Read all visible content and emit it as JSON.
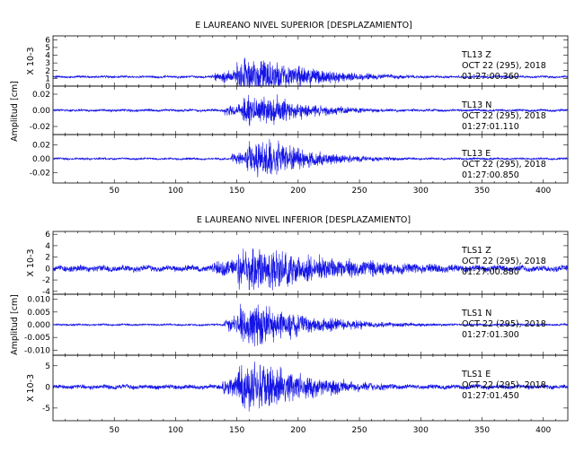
{
  "chart_data": [
    {
      "type": "line",
      "title": "E LAUREANO NIVEL SUPERIOR [DESPLAZAMIENTO]",
      "ylabel": "Amplitud [cm]",
      "xlim": [
        0,
        420
      ],
      "xticks": [
        50,
        100,
        150,
        200,
        250,
        300,
        350,
        400
      ],
      "show_xtick_labels": true,
      "panels": [
        {
          "station": "TL13   Z",
          "date": "OCT 22 (295), 2018",
          "time": "01:27:00.360",
          "scale_label": "X 10-3",
          "ylim": [
            0,
            6.5
          ],
          "yticks": [
            0,
            1,
            2,
            3,
            4,
            5,
            6
          ],
          "ytick_labels": [
            "0",
            "1",
            "2",
            "3",
            "4",
            "5",
            "6"
          ],
          "signal": {
            "baseline": 1.2,
            "noise": 0.12,
            "onset": 132,
            "peak_start": 150,
            "peak_end": 175,
            "peak_amp": 2.6,
            "decay": 0.02,
            "seed": 11
          }
        },
        {
          "station": "TL13   N",
          "date": "OCT 22 (295), 2018",
          "time": "01:27:01.110",
          "scale_label": "",
          "ylim": [
            -0.03,
            0.03
          ],
          "yticks": [
            -0.02,
            0.0,
            0.02
          ],
          "ytick_labels": [
            "-0.02",
            "0.00",
            "0.02"
          ],
          "signal": {
            "baseline": 0.0,
            "noise": 0.0012,
            "onset": 140,
            "peak_start": 155,
            "peak_end": 180,
            "peak_amp": 0.022,
            "decay": 0.025,
            "seed": 23
          }
        },
        {
          "station": "TL13   E",
          "date": "OCT 22 (295), 2018",
          "time": "01:27:00.850",
          "scale_label": "",
          "ylim": [
            -0.035,
            0.035
          ],
          "yticks": [
            -0.02,
            0.0,
            0.02
          ],
          "ytick_labels": [
            "-0.02",
            "0.00",
            "0.02"
          ],
          "signal": {
            "baseline": 0.0,
            "noise": 0.0012,
            "onset": 145,
            "peak_start": 158,
            "peak_end": 182,
            "peak_amp": 0.03,
            "decay": 0.025,
            "seed": 37
          }
        }
      ]
    },
    {
      "type": "line",
      "title": "E LAUREANO NIVEL INFERIOR [DESPLAZAMIENTO]",
      "ylabel": "Amplitud [cm]",
      "xlim": [
        0,
        420
      ],
      "xticks": [
        50,
        100,
        150,
        200,
        250,
        300,
        350,
        400
      ],
      "show_xtick_labels": true,
      "panels": [
        {
          "station": "TLS1   Z",
          "date": "OCT 22 (295), 2018",
          "time": "01:27:00.880",
          "scale_label": "X 10-3",
          "ylim": [
            -4.5,
            6.5
          ],
          "yticks": [
            -4,
            -2,
            0,
            2,
            4,
            6
          ],
          "ytick_labels": [
            "-4",
            "-2",
            "0",
            "2",
            "4",
            "6"
          ],
          "signal": {
            "baseline": 0.0,
            "noise": 0.45,
            "onset": 130,
            "peak_start": 150,
            "peak_end": 175,
            "peak_amp": 4.4,
            "decay": 0.012,
            "seed": 53
          }
        },
        {
          "station": "TLS1   N",
          "date": "OCT 22 (295), 2018",
          "time": "01:27:01.300",
          "scale_label": "",
          "ylim": [
            -0.012,
            0.012
          ],
          "yticks": [
            -0.01,
            -0.005,
            0.0,
            0.005,
            0.01
          ],
          "ytick_labels": [
            "-0.010",
            "-0.005",
            "0.000",
            "0.005",
            "0.010"
          ],
          "signal": {
            "baseline": 0.0,
            "noise": 0.0003,
            "onset": 140,
            "peak_start": 152,
            "peak_end": 172,
            "peak_amp": 0.0095,
            "decay": 0.02,
            "seed": 71
          }
        },
        {
          "station": "TLS1   E",
          "date": "OCT 22 (295), 2018",
          "time": "01:27:01.450",
          "scale_label": "X 10-3",
          "ylim": [
            -8,
            7.5
          ],
          "yticks": [
            -5,
            0,
            5
          ],
          "ytick_labels": [
            "-5",
            "0",
            "5"
          ],
          "signal": {
            "baseline": 0.0,
            "noise": 0.45,
            "onset": 138,
            "peak_start": 150,
            "peak_end": 172,
            "peak_amp": 6.5,
            "decay": 0.02,
            "seed": 89
          }
        }
      ]
    }
  ]
}
